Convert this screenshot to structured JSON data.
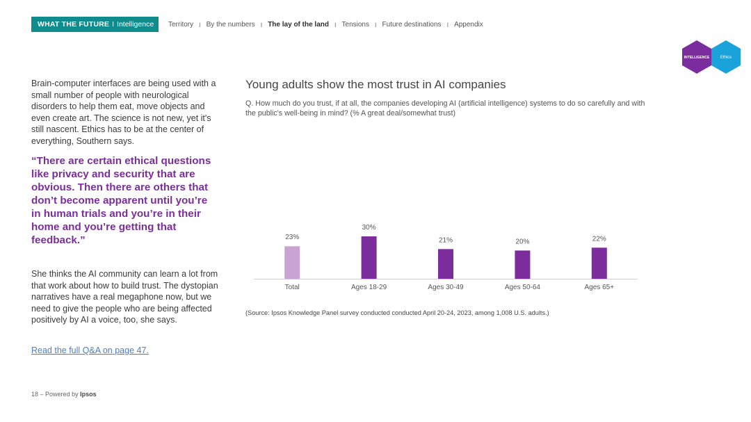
{
  "header": {
    "brand_bold": "WHAT THE FUTURE",
    "brand_sep": "I",
    "brand_rest": "Intelligence",
    "brand_color": "#0f8c8c",
    "nav": [
      {
        "label": "Territory",
        "active": false
      },
      {
        "label": "By the numbers",
        "active": false
      },
      {
        "label": "The lay of the land",
        "active": true
      },
      {
        "label": "Tensions",
        "active": false
      },
      {
        "label": "Future destinations",
        "active": false
      },
      {
        "label": "Appendix",
        "active": false
      }
    ],
    "nav_sep": "I",
    "hex_left": "INTELLIGENCE",
    "hex_right": "Ethics",
    "hex_left_color": "#7b2d9e",
    "hex_right_color": "#1aa3db"
  },
  "left": {
    "para1": "Brain-computer interfaces are being used with a small number of people with neurological disorders to help them eat, move objects and even create art. The science is not new, yet it's still nascent. Ethics has to be at the center of everything, Southern says.",
    "quote": "“There are certain ethical questions like privacy and security that are obvious. Then there are others that don’t become apparent until you’re in human trials and you’re in their home and you’re getting that feedback.”",
    "para2": "She thinks the AI community can learn a lot from that work about how to build trust. The dystopian narratives have a real megaphone now, but we need to give the people who are being affected positively by AI a voice, too, she says.",
    "link": "Read the full Q&A on page 47."
  },
  "chart": {
    "title": "Young adults show the most trust in AI companies",
    "subtitle": "Q. How much do you trust, if at all, the companies developing AI (artificial intelligence) systems to do so carefully and with the public's well-being in mind? (% A great deal/somewhat trust)",
    "source": "(Source: Ipsos Knowledge Panel survey conducted conducted April 20-24, 2023, among 1,008 U.S. adults.)"
  },
  "chart_data": {
    "type": "bar",
    "categories": [
      "Total",
      "Ages 18-29",
      "Ages 30-49",
      "Ages 50-64",
      "Ages 65+"
    ],
    "values": [
      23,
      30,
      21,
      20,
      22
    ],
    "data_labels": [
      "23%",
      "30%",
      "21%",
      "20%",
      "22%"
    ],
    "colors": [
      "#c9a3d3",
      "#7b2d9e",
      "#7b2d9e",
      "#7b2d9e",
      "#7b2d9e"
    ],
    "ylim": [
      0,
      30
    ],
    "grid": false,
    "legend": "none"
  },
  "footer": {
    "page": "18 –",
    "powered": "Powered by",
    "brand": "Ipsos"
  }
}
